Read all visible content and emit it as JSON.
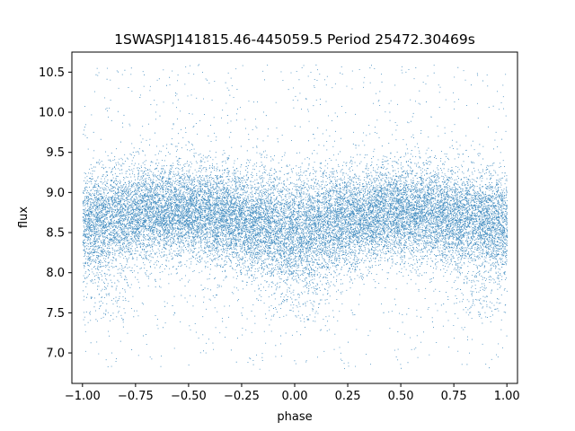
{
  "chart_data": {
    "type": "scatter",
    "title": "1SWASPJ141815.46-445059.5 Period 25472.30469s",
    "xlabel": "phase",
    "ylabel": "flux",
    "xlim": [
      -1.05,
      1.05
    ],
    "ylim": [
      6.62,
      10.75
    ],
    "x_ticks": [
      -1.0,
      -0.75,
      -0.5,
      -0.25,
      0.0,
      0.25,
      0.5,
      0.75,
      1.0
    ],
    "x_tick_labels": [
      "−1.00",
      "−0.75",
      "−0.50",
      "−0.25",
      "0.00",
      "0.25",
      "0.50",
      "0.75",
      "1.00"
    ],
    "y_ticks": [
      7.0,
      7.5,
      8.0,
      8.5,
      9.0,
      9.5,
      10.0,
      10.5
    ],
    "y_tick_labels": [
      "7.0",
      "7.5",
      "8.0",
      "8.5",
      "9.0",
      "9.5",
      "10.0",
      "10.5"
    ],
    "grid": false,
    "legend": "none",
    "point_color": "#1f77b4",
    "series": [
      {
        "profile_phase": [
          -1.0,
          -0.9,
          -0.75,
          -0.6,
          -0.5,
          -0.4,
          -0.25,
          -0.1,
          0.0,
          0.1,
          0.25,
          0.4,
          0.5,
          0.6,
          0.75,
          0.9,
          1.0
        ],
        "median_flux": [
          8.62,
          8.66,
          8.74,
          8.78,
          8.76,
          8.72,
          8.64,
          8.58,
          8.54,
          8.58,
          8.66,
          8.74,
          8.76,
          8.74,
          8.68,
          8.64,
          8.62
        ],
        "core_spread": [
          0.3,
          0.3,
          0.28,
          0.27,
          0.27,
          0.28,
          0.3,
          0.32,
          0.34,
          0.32,
          0.3,
          0.28,
          0.27,
          0.28,
          0.29,
          0.3,
          0.3
        ],
        "faint_tail_center_phase": [
          -0.9,
          0.0,
          0.9
        ],
        "faint_tail_flux_range": [
          7.4,
          8.3
        ],
        "outlier_flux_range": [
          6.8,
          10.6
        ],
        "approx_point_count": 42000
      }
    ]
  }
}
